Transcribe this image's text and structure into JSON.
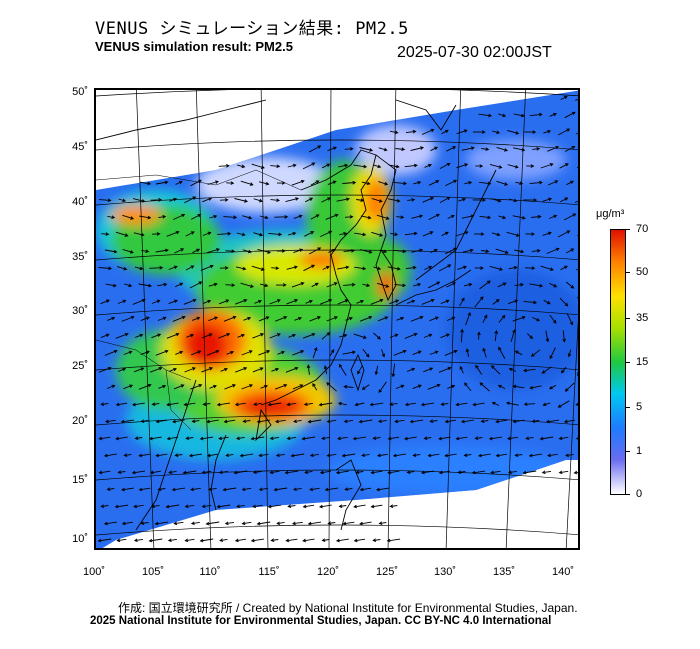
{
  "header": {
    "title_jp": "VENUS シミュレーション結果: PM2.5",
    "title_en": "VENUS simulation result: PM2.5",
    "timestamp": "2025-07-30 02:00JST"
  },
  "map": {
    "lat_labels": [
      "50˚",
      "45˚",
      "40˚",
      "35˚",
      "30˚",
      "25˚",
      "20˚",
      "15˚",
      "10˚"
    ],
    "lon_labels": [
      "100˚",
      "105˚",
      "110˚",
      "115˚",
      "120˚",
      "125˚",
      "130˚",
      "135˚",
      "140˚"
    ]
  },
  "colorbar": {
    "unit": "μg/m³",
    "ticks": [
      "70",
      "50",
      "35",
      "15",
      "5",
      "1",
      "0"
    ],
    "colors": [
      "#ffffff",
      "#6a6cf0",
      "#1e7bff",
      "#00c8f0",
      "#20c840",
      "#a8e000",
      "#ffe000",
      "#ff8000",
      "#e01000"
    ]
  },
  "footer": {
    "credit_line1": "作成: 国立環境研究所 / Created by National Institute for Environmental Studies, Japan.",
    "credit_line2": "2025 National Institute for Environmental Studies, Japan. CC BY-NC 4.0 International"
  }
}
